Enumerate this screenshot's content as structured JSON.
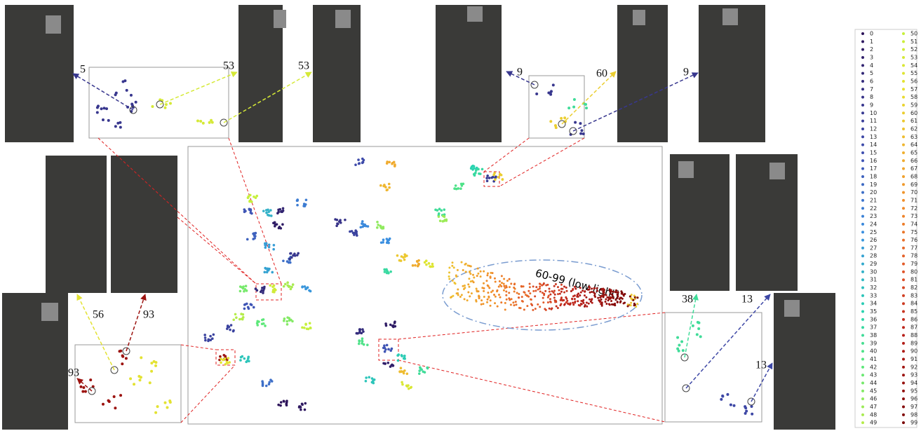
{
  "annotations": [
    "5",
    "53",
    "53",
    "9",
    "60",
    "9",
    "56",
    "93",
    "93",
    "38",
    "13",
    "13"
  ],
  "ellipse_label": "60-99 (low light)",
  "legend": [
    "0",
    "1",
    "2",
    "3",
    "4",
    "5",
    "6",
    "7",
    "8",
    "9",
    "10",
    "11",
    "12",
    "13",
    "14",
    "15",
    "16",
    "17",
    "18",
    "19",
    "20",
    "21",
    "22",
    "23",
    "24",
    "25",
    "26",
    "27",
    "28",
    "29",
    "30",
    "31",
    "32",
    "33",
    "34",
    "35",
    "36",
    "37",
    "38",
    "39",
    "40",
    "41",
    "42",
    "43",
    "44",
    "45",
    "46",
    "47",
    "48",
    "49",
    "50",
    "51",
    "52",
    "53",
    "54",
    "55",
    "56",
    "57",
    "58",
    "59",
    "60",
    "61",
    "62",
    "63",
    "64",
    "65",
    "66",
    "67",
    "68",
    "69",
    "70",
    "71",
    "72",
    "73",
    "74",
    "75",
    "76",
    "77",
    "78",
    "79",
    "80",
    "81",
    "82",
    "83",
    "84",
    "85",
    "86",
    "87",
    "88",
    "89",
    "90",
    "91",
    "92",
    "93",
    "94",
    "95",
    "96",
    "97",
    "98",
    "99"
  ]
}
